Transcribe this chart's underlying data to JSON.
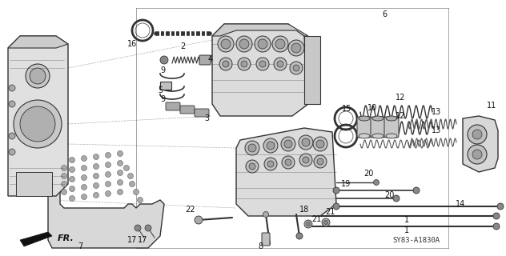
{
  "bg_color": "#ffffff",
  "diagram_code": "SY83-A1830A",
  "fr_label": "FR.",
  "lc": "#333333",
  "fc_body": "#e8e8e8",
  "fc_plate": "#d8d8d8",
  "fc_valve": "#d0d0d0",
  "fc_spring": "#555555",
  "fc_ring": "#c0c0c0"
}
